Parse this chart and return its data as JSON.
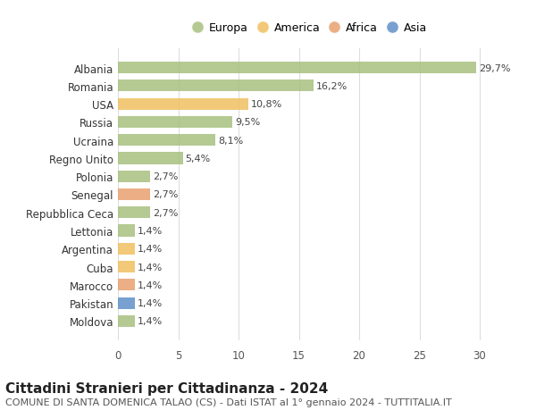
{
  "countries": [
    "Albania",
    "Romania",
    "USA",
    "Russia",
    "Ucraina",
    "Regno Unito",
    "Polonia",
    "Senegal",
    "Repubblica Ceca",
    "Lettonia",
    "Argentina",
    "Cuba",
    "Marocco",
    "Pakistan",
    "Moldova"
  ],
  "values": [
    29.7,
    16.2,
    10.8,
    9.5,
    8.1,
    5.4,
    2.7,
    2.7,
    2.7,
    1.4,
    1.4,
    1.4,
    1.4,
    1.4,
    1.4
  ],
  "continents": [
    "Europa",
    "Europa",
    "America",
    "Europa",
    "Europa",
    "Europa",
    "Europa",
    "Africa",
    "Europa",
    "Europa",
    "America",
    "America",
    "Africa",
    "Asia",
    "Europa"
  ],
  "colors": {
    "Europa": "#a8c080",
    "America": "#f0c060",
    "Africa": "#e8a070",
    "Asia": "#6090c8"
  },
  "legend_order": [
    "Europa",
    "America",
    "Africa",
    "Asia"
  ],
  "legend_colors": {
    "Europa": "#a8c080",
    "America": "#f0c060",
    "Africa": "#e8a070",
    "Asia": "#6090c8"
  },
  "title": "Cittadini Stranieri per Cittadinanza - 2024",
  "subtitle": "COMUNE DI SANTA DOMENICA TALAO (CS) - Dati ISTAT al 1° gennaio 2024 - TUTTITALIA.IT",
  "xlim": [
    0,
    32
  ],
  "xticks": [
    0,
    5,
    10,
    15,
    20,
    25,
    30
  ],
  "background_color": "#ffffff",
  "grid_color": "#dddddd",
  "title_fontsize": 11,
  "subtitle_fontsize": 8
}
